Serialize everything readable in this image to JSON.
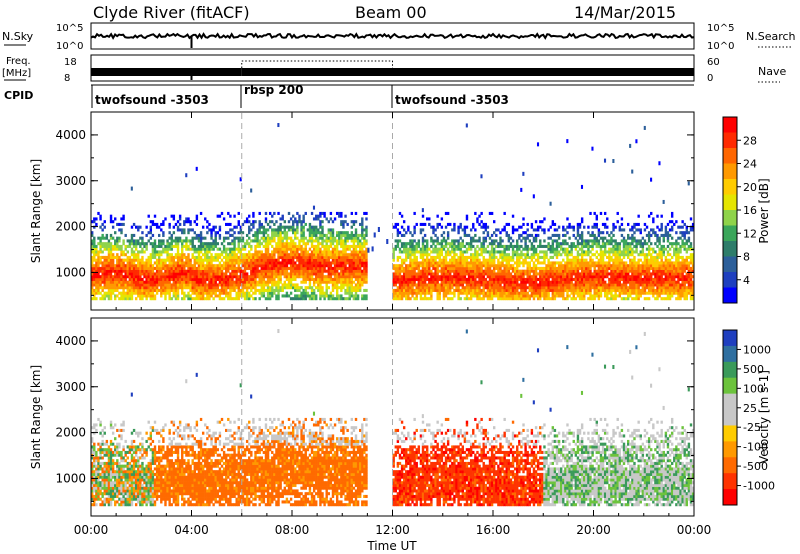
{
  "header": {
    "station": "Clyde River (fitACF)",
    "beam": "Beam 00",
    "date": "14/Mar/2015"
  },
  "nsky_panel": {
    "left_label": "N.Sky",
    "left_ticks": [
      "10^5",
      "10^0"
    ],
    "right_ticks": [
      "10^5",
      "10^0"
    ],
    "right_label": "N.Search"
  },
  "freq_panel": {
    "left_label_1": "Freq.",
    "left_label_2": "[MHz]",
    "left_ticks": [
      "18",
      "8"
    ],
    "right_ticks": [
      "60",
      "0"
    ],
    "right_label": "Nave"
  },
  "cpid_panel": {
    "label": "CPID",
    "segments": [
      {
        "name": "twofsound -3503",
        "start_h": 0,
        "end_h": 6
      },
      {
        "name": "rbsp 200",
        "start_h": 6,
        "end_h": 12
      },
      {
        "name": "twofsound -3503",
        "start_h": 12,
        "end_h": 24
      }
    ]
  },
  "x_axis": {
    "ticks": [
      "00:00",
      "04:00",
      "08:00",
      "12:00",
      "16:00",
      "20:00",
      "00:00"
    ],
    "label": "Time UT"
  },
  "chart_data": [
    {
      "type": "heatmap",
      "ylabel": "Slant Range [km]",
      "yticks": [
        "4000",
        "3000",
        "2000",
        "1000"
      ],
      "ylim": [
        180,
        4500
      ],
      "colorbar": {
        "label": "Power [dB]",
        "ticks": [
          "28",
          "24",
          "20",
          "16",
          "12",
          "8",
          "4"
        ],
        "colors": [
          "#ff0000",
          "#ff2a00",
          "#ff6600",
          "#ff9900",
          "#ffcc00",
          "#e5e500",
          "#8fd34a",
          "#3aa65a",
          "#2e7d6a",
          "#2c5f9a",
          "#1e3fbf",
          "#0000ff"
        ]
      }
    },
    {
      "type": "heatmap",
      "ylabel": "Slant Range [km]",
      "yticks": [
        "4000",
        "3000",
        "2000",
        "1000"
      ],
      "ylim": [
        180,
        4500
      ],
      "colorbar": {
        "label": "Velocity [m s-1]",
        "ticks": [
          "1000",
          "500",
          "100",
          "25",
          "-25",
          "-100",
          "-500",
          "-1000"
        ],
        "colors": [
          "#1f3fbf",
          "#2f6fa0",
          "#3a9a5a",
          "#6cc33c",
          "#c8c8c8",
          "#c8c8c8",
          "#ffcc00",
          "#ff9900",
          "#ff6a00",
          "#ff3300",
          "#ff0000"
        ]
      }
    }
  ]
}
